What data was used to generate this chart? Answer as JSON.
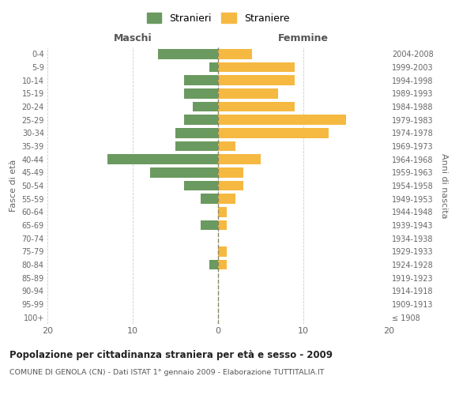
{
  "age_groups": [
    "100+",
    "95-99",
    "90-94",
    "85-89",
    "80-84",
    "75-79",
    "70-74",
    "65-69",
    "60-64",
    "55-59",
    "50-54",
    "45-49",
    "40-44",
    "35-39",
    "30-34",
    "25-29",
    "20-24",
    "15-19",
    "10-14",
    "5-9",
    "0-4"
  ],
  "birth_years": [
    "≤ 1908",
    "1909-1913",
    "1914-1918",
    "1919-1923",
    "1924-1928",
    "1929-1933",
    "1934-1938",
    "1939-1943",
    "1944-1948",
    "1949-1953",
    "1954-1958",
    "1959-1963",
    "1964-1968",
    "1969-1973",
    "1974-1978",
    "1979-1983",
    "1984-1988",
    "1989-1993",
    "1994-1998",
    "1999-2003",
    "2004-2008"
  ],
  "males": [
    0,
    0,
    0,
    0,
    1,
    0,
    0,
    2,
    0,
    2,
    4,
    8,
    13,
    5,
    5,
    4,
    3,
    4,
    4,
    1,
    7
  ],
  "females": [
    0,
    0,
    0,
    0,
    1,
    1,
    0,
    1,
    1,
    2,
    3,
    3,
    5,
    2,
    13,
    15,
    9,
    7,
    9,
    9,
    4
  ],
  "male_color": "#6a9a5f",
  "female_color": "#f5b942",
  "title": "Popolazione per cittadinanza straniera per età e sesso - 2009",
  "subtitle": "COMUNE DI GENOLA (CN) - Dati ISTAT 1° gennaio 2009 - Elaborazione TUTTITALIA.IT",
  "xlabel_left": "Maschi",
  "xlabel_right": "Femmine",
  "ylabel_left": "Fasce di età",
  "ylabel_right": "Anni di nascita",
  "legend_males": "Stranieri",
  "legend_females": "Straniere",
  "xlim": 20,
  "background_color": "#ffffff",
  "grid_color": "#cccccc"
}
